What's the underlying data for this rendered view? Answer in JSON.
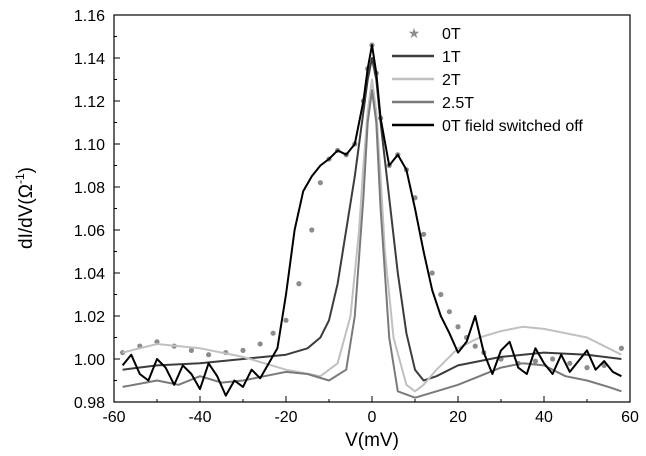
{
  "chart_data": {
    "type": "line",
    "title": "",
    "xlabel": "V(mV)",
    "ylabel": "dI/dV(Ω",
    "ylabel_superscript": "-1",
    "ylabel_suffix": ")",
    "xlim": [
      -60,
      60
    ],
    "ylim": [
      0.98,
      1.16
    ],
    "x_ticks": [
      -60,
      -40,
      -20,
      0,
      20,
      40,
      60
    ],
    "x_tick_labels": [
      "-60",
      "-40",
      "-20",
      "0",
      "20",
      "40",
      "60"
    ],
    "y_ticks": [
      0.98,
      1.0,
      1.02,
      1.04,
      1.06,
      1.08,
      1.1,
      1.12,
      1.14,
      1.16
    ],
    "y_tick_labels": [
      "0.98",
      "1.00",
      "1.02",
      "1.04",
      "1.06",
      "1.08",
      "1.10",
      "1.12",
      "1.14",
      "1.16"
    ],
    "grid": false,
    "legend_position": "top-right",
    "series": [
      {
        "name": "0T",
        "style": "markers",
        "color": "#8c8c8c",
        "x": [
          -58,
          -54,
          -50,
          -46,
          -42,
          -38,
          -34,
          -30,
          -26,
          -23,
          -20,
          -17,
          -14,
          -12,
          -10,
          -8,
          -6,
          -4,
          -2,
          -1,
          0,
          1,
          2,
          4,
          6,
          8,
          10,
          12,
          14,
          16,
          18,
          20,
          22,
          24,
          26,
          30,
          34,
          38,
          42,
          46,
          50,
          54,
          58
        ],
        "y": [
          1.003,
          1.006,
          1.008,
          1.006,
          1.004,
          1.002,
          1.003,
          1.004,
          1.007,
          1.012,
          1.018,
          1.035,
          1.06,
          1.082,
          1.093,
          1.097,
          1.095,
          1.1,
          1.12,
          1.135,
          1.146,
          1.133,
          1.112,
          1.09,
          1.095,
          1.088,
          1.075,
          1.058,
          1.04,
          1.03,
          1.022,
          1.015,
          1.01,
          1.006,
          1.003,
          1.0,
          0.998,
          0.999,
          1.0,
          0.998,
          0.996,
          0.997,
          1.005
        ]
      },
      {
        "name": "1T",
        "style": "line",
        "color": "#3c3c3c",
        "x": [
          -58,
          -50,
          -40,
          -30,
          -20,
          -15,
          -12,
          -10,
          -8,
          -6,
          -4,
          -2,
          -1,
          0,
          1,
          2,
          4,
          6,
          8,
          10,
          12,
          15,
          20,
          30,
          40,
          50,
          58
        ],
        "y": [
          0.995,
          0.997,
          0.998,
          1.0,
          1.002,
          1.005,
          1.01,
          1.018,
          1.035,
          1.06,
          1.085,
          1.115,
          1.13,
          1.14,
          1.13,
          1.11,
          1.075,
          1.04,
          1.012,
          0.995,
          0.99,
          0.992,
          0.997,
          1.001,
          1.003,
          1.002,
          1.0
        ]
      },
      {
        "name": "2T",
        "style": "line",
        "color": "#c0c0c0",
        "x": [
          -58,
          -50,
          -40,
          -30,
          -20,
          -12,
          -8,
          -5,
          -3,
          -2,
          -1,
          0,
          1,
          2,
          3,
          5,
          8,
          10,
          12,
          15,
          20,
          25,
          30,
          35,
          40,
          50,
          58
        ],
        "y": [
          1.003,
          1.007,
          1.005,
          1.001,
          0.995,
          0.992,
          0.998,
          1.02,
          1.06,
          1.09,
          1.115,
          1.13,
          1.115,
          1.085,
          1.05,
          1.01,
          0.988,
          0.985,
          0.988,
          0.995,
          1.005,
          1.01,
          1.013,
          1.015,
          1.014,
          1.01,
          1.002
        ]
      },
      {
        "name": "2.5T",
        "style": "line",
        "color": "#7a7a7a",
        "x": [
          -58,
          -50,
          -45,
          -40,
          -35,
          -30,
          -25,
          -20,
          -15,
          -10,
          -6,
          -4,
          -2,
          -1,
          0,
          1,
          2,
          4,
          6,
          10,
          15,
          20,
          25,
          30,
          35,
          40,
          45,
          50,
          55,
          58
        ],
        "y": [
          0.987,
          0.99,
          0.988,
          0.992,
          0.989,
          0.99,
          0.992,
          0.994,
          0.993,
          0.99,
          0.995,
          1.02,
          1.075,
          1.11,
          1.125,
          1.11,
          1.07,
          1.01,
          0.985,
          0.982,
          0.985,
          0.988,
          0.992,
          0.996,
          0.998,
          0.997,
          0.992,
          0.99,
          0.987,
          0.985
        ]
      },
      {
        "name": "0T field switched off",
        "style": "line",
        "color": "#000000",
        "x": [
          -58,
          -56,
          -54,
          -52,
          -50,
          -48,
          -46,
          -44,
          -42,
          -40,
          -38,
          -36,
          -34,
          -32,
          -30,
          -28,
          -26,
          -24,
          -22,
          -20,
          -18,
          -16,
          -14,
          -12,
          -10,
          -8,
          -6,
          -4,
          -2,
          -1,
          0,
          1,
          2,
          4,
          6,
          8,
          10,
          12,
          14,
          16,
          18,
          20,
          22,
          24,
          26,
          28,
          30,
          32,
          34,
          36,
          38,
          40,
          42,
          44,
          46,
          48,
          50,
          52,
          54,
          56,
          58
        ],
        "y": [
          0.997,
          1.002,
          0.993,
          0.99,
          1.0,
          0.996,
          0.988,
          0.997,
          0.993,
          0.986,
          0.998,
          0.992,
          0.983,
          0.99,
          0.987,
          0.995,
          0.991,
          0.998,
          1.005,
          1.03,
          1.06,
          1.078,
          1.085,
          1.09,
          1.093,
          1.097,
          1.095,
          1.1,
          1.12,
          1.135,
          1.146,
          1.133,
          1.112,
          1.09,
          1.095,
          1.088,
          1.07,
          1.05,
          1.032,
          1.02,
          1.012,
          1.003,
          1.008,
          1.02,
          1.003,
          0.993,
          1.004,
          1.008,
          0.996,
          0.993,
          1.005,
          0.998,
          0.993,
          1.002,
          0.994,
          0.999,
          1.004,
          0.995,
          0.999,
          0.994,
          0.992
        ]
      }
    ]
  }
}
